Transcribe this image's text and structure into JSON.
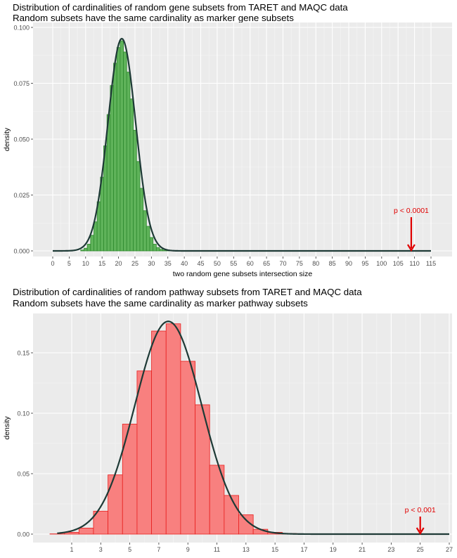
{
  "chart_data": [
    {
      "type": "bar",
      "title": "Distribution of cardinalities of random gene subsets from TARET and MAQC data",
      "subtitle": "Random subsets have the same cardinality as marker gene subsets",
      "xlabel": "two random gene subsets intersection size",
      "ylabel": "density",
      "xlim": [
        0,
        115
      ],
      "ylim": [
        0,
        0.1
      ],
      "x_ticks": [
        "0",
        "5",
        "10",
        "15",
        "20",
        "25",
        "30",
        "35",
        "40",
        "45",
        "50",
        "55",
        "60",
        "65",
        "70",
        "75",
        "80",
        "85",
        "90",
        "95",
        "100",
        "105",
        "110",
        "115"
      ],
      "y_ticks": [
        "0.000",
        "0.025",
        "0.050",
        "0.075",
        "0.100"
      ],
      "bar_color": "#5fb35a",
      "bar_edge": "#2f8a2f",
      "curve_color": "#1e3a36",
      "grid": true,
      "histogram": {
        "bin_width": 1,
        "x": [
          9,
          10,
          11,
          12,
          13,
          14,
          15,
          16,
          17,
          18,
          19,
          20,
          21,
          22,
          23,
          24,
          25,
          26,
          27,
          28,
          29,
          30,
          31,
          32,
          33,
          34,
          35
        ],
        "density": [
          0.0004,
          0.0012,
          0.003,
          0.007,
          0.013,
          0.022,
          0.033,
          0.047,
          0.061,
          0.074,
          0.084,
          0.091,
          0.094,
          0.089,
          0.08,
          0.068,
          0.054,
          0.04,
          0.028,
          0.018,
          0.011,
          0.006,
          0.003,
          0.0015,
          0.0007,
          0.0003,
          0.0001
        ]
      },
      "density_curve": {
        "mean": 21,
        "sd": 4.2,
        "x_range": [
          0,
          115
        ]
      },
      "annotation": {
        "text": "p < 0.0001",
        "x": 109,
        "color": "#e00000"
      }
    },
    {
      "type": "bar",
      "title": "Distribution of cardinalities of random pathway subsets from TARET and MAQC data",
      "subtitle": "Random subsets have the same cardinality as marker pathway subsets",
      "xlabel": "",
      "ylabel": "density",
      "xlim": [
        -0.5,
        27
      ],
      "ylim": [
        0,
        0.175
      ],
      "x_ticks": [
        "1",
        "3",
        "5",
        "7",
        "9",
        "11",
        "13",
        "15",
        "17",
        "19",
        "21",
        "23",
        "25",
        "27"
      ],
      "y_ticks": [
        "0.00",
        "0.05",
        "0.10",
        "0.15"
      ],
      "bar_color": "#f8807f",
      "bar_edge": "#e8201f",
      "curve_color": "#1e3a36",
      "grid": true,
      "histogram": {
        "bin_width": 1,
        "x": [
          0,
          1,
          2,
          3,
          4,
          5,
          6,
          7,
          8,
          9,
          10,
          11,
          12,
          13,
          14,
          15,
          16,
          17,
          18,
          19,
          20,
          21,
          22,
          23,
          24,
          25,
          26
        ],
        "density": [
          0.0002,
          0.0015,
          0.005,
          0.019,
          0.049,
          0.091,
          0.135,
          0.168,
          0.174,
          0.143,
          0.107,
          0.057,
          0.032,
          0.016,
          0.004,
          0.0015,
          0.0005,
          0.0002,
          0.0001,
          0.0001,
          0,
          0,
          0,
          0,
          0,
          0,
          0
        ]
      },
      "density_curve": {
        "mean": 7.65,
        "sd": 2.3,
        "peak": 0.176,
        "x_range": [
          0,
          27
        ]
      },
      "annotation": {
        "text": "p < 0.001",
        "x": 25,
        "color": "#e00000"
      }
    }
  ]
}
